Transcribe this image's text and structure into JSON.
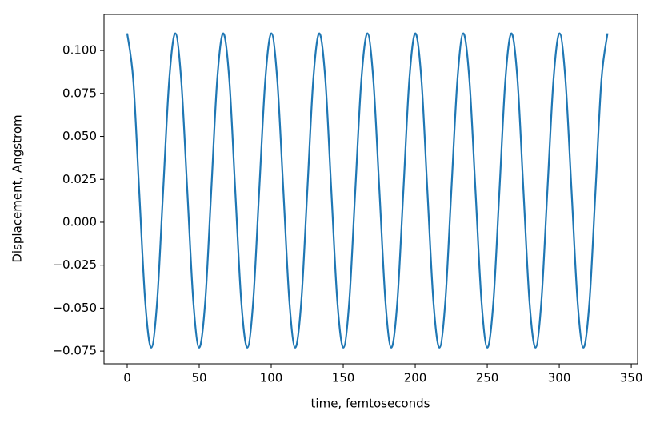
{
  "chart_data": {
    "type": "line",
    "x_label": "time, femtoseconds",
    "y_label": "Displacement, Angstrom",
    "x": [
      0,
      4.2,
      8.3,
      12.5,
      16.7,
      20.8,
      25.0,
      29.2,
      33.4,
      37.5,
      41.7,
      45.9,
      50.0,
      54.2,
      58.4,
      62.5,
      66.7,
      70.9,
      75.0,
      79.2,
      83.4,
      87.5,
      91.7,
      95.9,
      100.1,
      104.2,
      108.4,
      112.6,
      116.7,
      120.9,
      125.1,
      129.2,
      133.4,
      137.6,
      141.7,
      145.9,
      150.1,
      154.2,
      158.4,
      162.6,
      166.8,
      170.9,
      175.1,
      179.3,
      183.4,
      187.6,
      191.8,
      195.9,
      200.1,
      204.3,
      208.4,
      212.6,
      216.8,
      220.9,
      225.1,
      229.3,
      233.4,
      237.6,
      241.8,
      246.0,
      250.1,
      254.3,
      258.5,
      262.6,
      266.8,
      271.0,
      275.1,
      279.3,
      283.5,
      287.6,
      291.8,
      296.0,
      300.2,
      304.3,
      308.5,
      312.7,
      316.8,
      321.0,
      325.2,
      329.3,
      333.5
    ],
    "series": [
      {
        "color": "#1f77b4",
        "values": [
          0.11,
          0.083,
          0.019,
          -0.046,
          -0.073,
          -0.046,
          0.019,
          0.083,
          0.11,
          0.083,
          0.019,
          -0.046,
          -0.073,
          -0.046,
          0.019,
          0.083,
          0.11,
          0.083,
          0.019,
          -0.046,
          -0.073,
          -0.046,
          0.019,
          0.083,
          0.11,
          0.083,
          0.019,
          -0.046,
          -0.073,
          -0.046,
          0.019,
          0.083,
          0.11,
          0.083,
          0.019,
          -0.046,
          -0.073,
          -0.046,
          0.019,
          0.083,
          0.11,
          0.083,
          0.019,
          -0.046,
          -0.073,
          -0.046,
          0.019,
          0.083,
          0.11,
          0.083,
          0.019,
          -0.046,
          -0.073,
          -0.046,
          0.019,
          0.083,
          0.11,
          0.083,
          0.019,
          -0.046,
          -0.073,
          -0.046,
          0.019,
          0.083,
          0.11,
          0.083,
          0.019,
          -0.046,
          -0.073,
          -0.046,
          0.019,
          0.083,
          0.11,
          0.083,
          0.019,
          -0.046,
          -0.073,
          -0.046,
          0.019,
          0.083,
          0.11
        ]
      }
    ],
    "xlim": [
      -16.1,
      354.4
    ],
    "xticks": [
      0,
      50,
      100,
      150,
      200,
      250,
      300,
      350
    ],
    "ylim": [
      -0.0824,
      0.121
    ],
    "yticks": [
      {
        "value": -0.075,
        "label": "−0.075"
      },
      {
        "value": -0.05,
        "label": "−0.050"
      },
      {
        "value": -0.025,
        "label": "−0.025"
      },
      {
        "value": 0,
        "label": "0.000"
      },
      {
        "value": 0.025,
        "label": "0.025"
      },
      {
        "value": 0.05,
        "label": "0.050"
      },
      {
        "value": 0.075,
        "label": "0.075"
      },
      {
        "value": 0.1,
        "label": "0.100"
      }
    ]
  }
}
